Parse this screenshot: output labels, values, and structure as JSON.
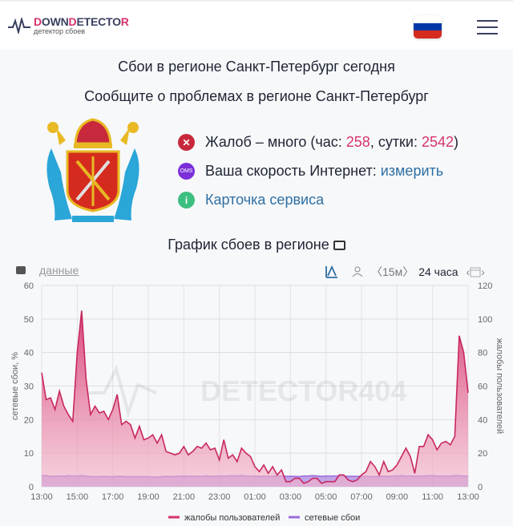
{
  "header": {
    "logo_down": "DOWN",
    "logo_d": "D",
    "logo_etecto": "ETECTO",
    "logo_r": "R",
    "logo_sub": "детектор сбоев",
    "flag_colors": [
      "#ffffff",
      "#0039a6",
      "#d52b1e"
    ],
    "menu_icon": "hamburger-icon"
  },
  "titles": {
    "outages": "Сбои в регионе Санкт-Петербург сегодня",
    "report": "Сообщите о проблемах в регионе Санкт-Петербург"
  },
  "info": {
    "complaints_prefix": "Жалоб – много (час: ",
    "complaints_hour": "258",
    "complaints_mid": ", сутки: ",
    "complaints_day": "2542",
    "complaints_suffix": ")",
    "speed_label": "Ваша скорость Интернет: ",
    "speed_link": "измерить",
    "speed_badge": "OMS",
    "service_card": "Карточка сервиса",
    "info_badge": "i"
  },
  "section_title": "График сбоев в регионе",
  "toolbar": {
    "data_link": "данные",
    "interval": "〈15м〉",
    "period": "24 часа"
  },
  "colors": {
    "accent": "#d6336c",
    "network": "#9b6ddb",
    "link": "#2f6fa3",
    "error": "#c8283c",
    "ok": "#3cbf80"
  },
  "chart_data": {
    "type": "area",
    "watermark": "DETECTOR404",
    "ylabel": "сетевые сбои, %",
    "ylabel_right": "жалобы пользователей",
    "ylim": [
      0,
      60
    ],
    "ylim_right": [
      0,
      120
    ],
    "yticks": [
      "0",
      "10",
      "20",
      "30",
      "40",
      "50",
      "60"
    ],
    "yticks_right": [
      "0",
      "20",
      "40",
      "60",
      "80",
      "100",
      "120"
    ],
    "xticks": [
      "13:00",
      "15:00",
      "17:00",
      "19:00",
      "21:00",
      "23:00",
      "01:00",
      "03:00",
      "05:00",
      "07:00",
      "09:00",
      "11:00",
      "13:00"
    ],
    "interval_minutes": 15,
    "grid": true,
    "legend": "bottom",
    "series": [
      {
        "name": "жалобы пользователей",
        "axis": "right",
        "color": "#d6336c",
        "values": [
          68,
          52,
          53,
          46,
          57,
          48,
          43,
          39,
          80,
          105,
          64,
          43,
          48,
          44,
          45,
          40,
          46,
          55,
          37,
          39,
          37,
          29,
          36,
          28,
          29,
          31,
          26,
          31,
          21,
          20,
          19,
          20,
          24,
          19,
          21,
          24,
          23,
          26,
          22,
          23,
          16,
          28,
          17,
          19,
          15,
          23,
          20,
          18,
          12,
          9,
          13,
          8,
          12,
          7,
          10,
          3,
          3,
          5,
          5,
          2,
          3,
          5,
          5,
          2,
          3,
          3,
          3,
          7,
          7,
          4,
          3,
          4,
          7,
          9,
          15,
          12,
          7,
          15,
          9,
          10,
          13,
          18,
          23,
          18,
          8,
          24,
          24,
          31,
          28,
          22,
          26,
          27,
          25,
          30,
          90,
          80,
          56
        ]
      },
      {
        "name": "сетевые сбои",
        "axis": "left",
        "color": "#9b6ddb",
        "values": [
          3.3,
          3.3,
          3.1,
          3.1,
          3.2,
          3.1,
          3.3,
          3.2,
          3.2,
          3.3,
          3.2,
          3.0,
          3.0,
          3.0,
          3.1,
          3.0,
          3.0,
          3.1,
          3.1,
          3.0,
          3.0,
          3.0,
          3.0,
          3.0,
          3.0,
          2.9,
          2.9,
          3.0,
          3.1,
          3.0,
          3.1,
          3.1,
          3.2,
          3.1,
          3.1,
          3.1,
          3.1,
          3.2,
          3.1,
          3.1,
          3.2,
          3.2,
          3.2,
          3.3,
          3.2,
          3.3,
          3.2,
          3.2,
          3.1,
          3.1,
          3.1,
          3.1,
          3.1,
          3.2,
          3.2,
          3.1,
          3.1,
          3.1,
          3.0,
          3.2,
          3.2,
          3.3,
          3.2,
          3.1,
          3.2,
          3.2,
          3.2,
          3.2,
          3.2,
          3.1,
          3.1,
          3.1,
          3.1,
          3.1,
          3.0,
          3.0,
          3.1,
          3.1,
          3.1,
          3.2,
          3.2,
          3.3,
          3.2,
          3.2,
          3.1,
          3.2,
          3.2,
          3.3,
          3.3,
          3.2,
          3.2,
          3.2,
          3.2,
          3.3,
          3.3,
          3.2,
          3.1
        ]
      }
    ]
  }
}
